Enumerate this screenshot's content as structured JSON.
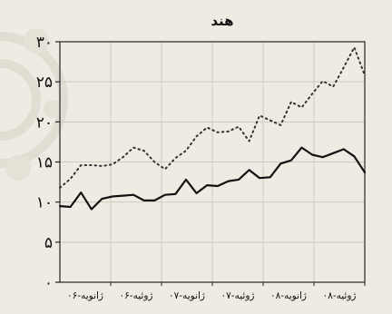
{
  "chart_data": {
    "type": "line",
    "title": "هند",
    "ylim": [
      0,
      30
    ],
    "yticks": [
      {
        "value": 0,
        "label": "۰"
      },
      {
        "value": 5,
        "label": "۵"
      },
      {
        "value": 10,
        "label": "۱۰"
      },
      {
        "value": 15,
        "label": "۱۵"
      },
      {
        "value": 20,
        "label": "۲۰"
      },
      {
        "value": 25,
        "label": "۲۵"
      },
      {
        "value": 30,
        "label": "۳۰"
      }
    ],
    "xticks": [
      "۰۶-ژانویه",
      "۰۶-ژوئیه",
      "۰۷-ژانویه",
      "۰۷-ژوئیه",
      "۰۸-ژانویه",
      "۰۸-ژوئیه"
    ],
    "xlim": [
      0,
      29
    ],
    "grid": true,
    "legend": "none",
    "series": [
      {
        "style": "solid",
        "color": "#111111",
        "x": [
          0,
          1,
          2,
          3,
          4,
          5,
          6,
          7,
          8,
          9,
          10,
          11,
          12,
          13,
          14,
          15,
          16,
          17,
          18,
          19,
          20,
          21,
          22,
          23,
          24,
          25,
          26,
          27,
          28,
          29
        ],
        "values": [
          9.5,
          9.4,
          11.2,
          9.1,
          10.4,
          10.7,
          10.8,
          10.9,
          10.2,
          10.2,
          10.9,
          11.0,
          12.8,
          11.1,
          12.1,
          12.0,
          12.6,
          12.8,
          14.0,
          13.0,
          13.1,
          14.8,
          15.2,
          16.8,
          15.9,
          15.6,
          16.1,
          16.6,
          15.7,
          13.7
        ]
      },
      {
        "style": "dotted",
        "color": "#333333",
        "x": [
          0,
          1,
          2,
          3,
          4,
          5,
          6,
          7,
          8,
          9,
          10,
          11,
          12,
          13,
          14,
          15,
          16,
          17,
          18,
          19,
          20,
          21,
          22,
          23,
          24,
          25,
          26,
          27,
          28,
          29
        ],
        "values": [
          11.8,
          12.9,
          14.6,
          14.6,
          14.5,
          14.7,
          15.6,
          16.8,
          16.4,
          15.0,
          14.1,
          15.5,
          16.4,
          18.2,
          19.3,
          18.7,
          18.8,
          19.4,
          17.6,
          20.8,
          20.2,
          19.6,
          22.5,
          21.8,
          23.5,
          25.1,
          24.4,
          26.8,
          29.3,
          25.8
        ]
      }
    ]
  }
}
